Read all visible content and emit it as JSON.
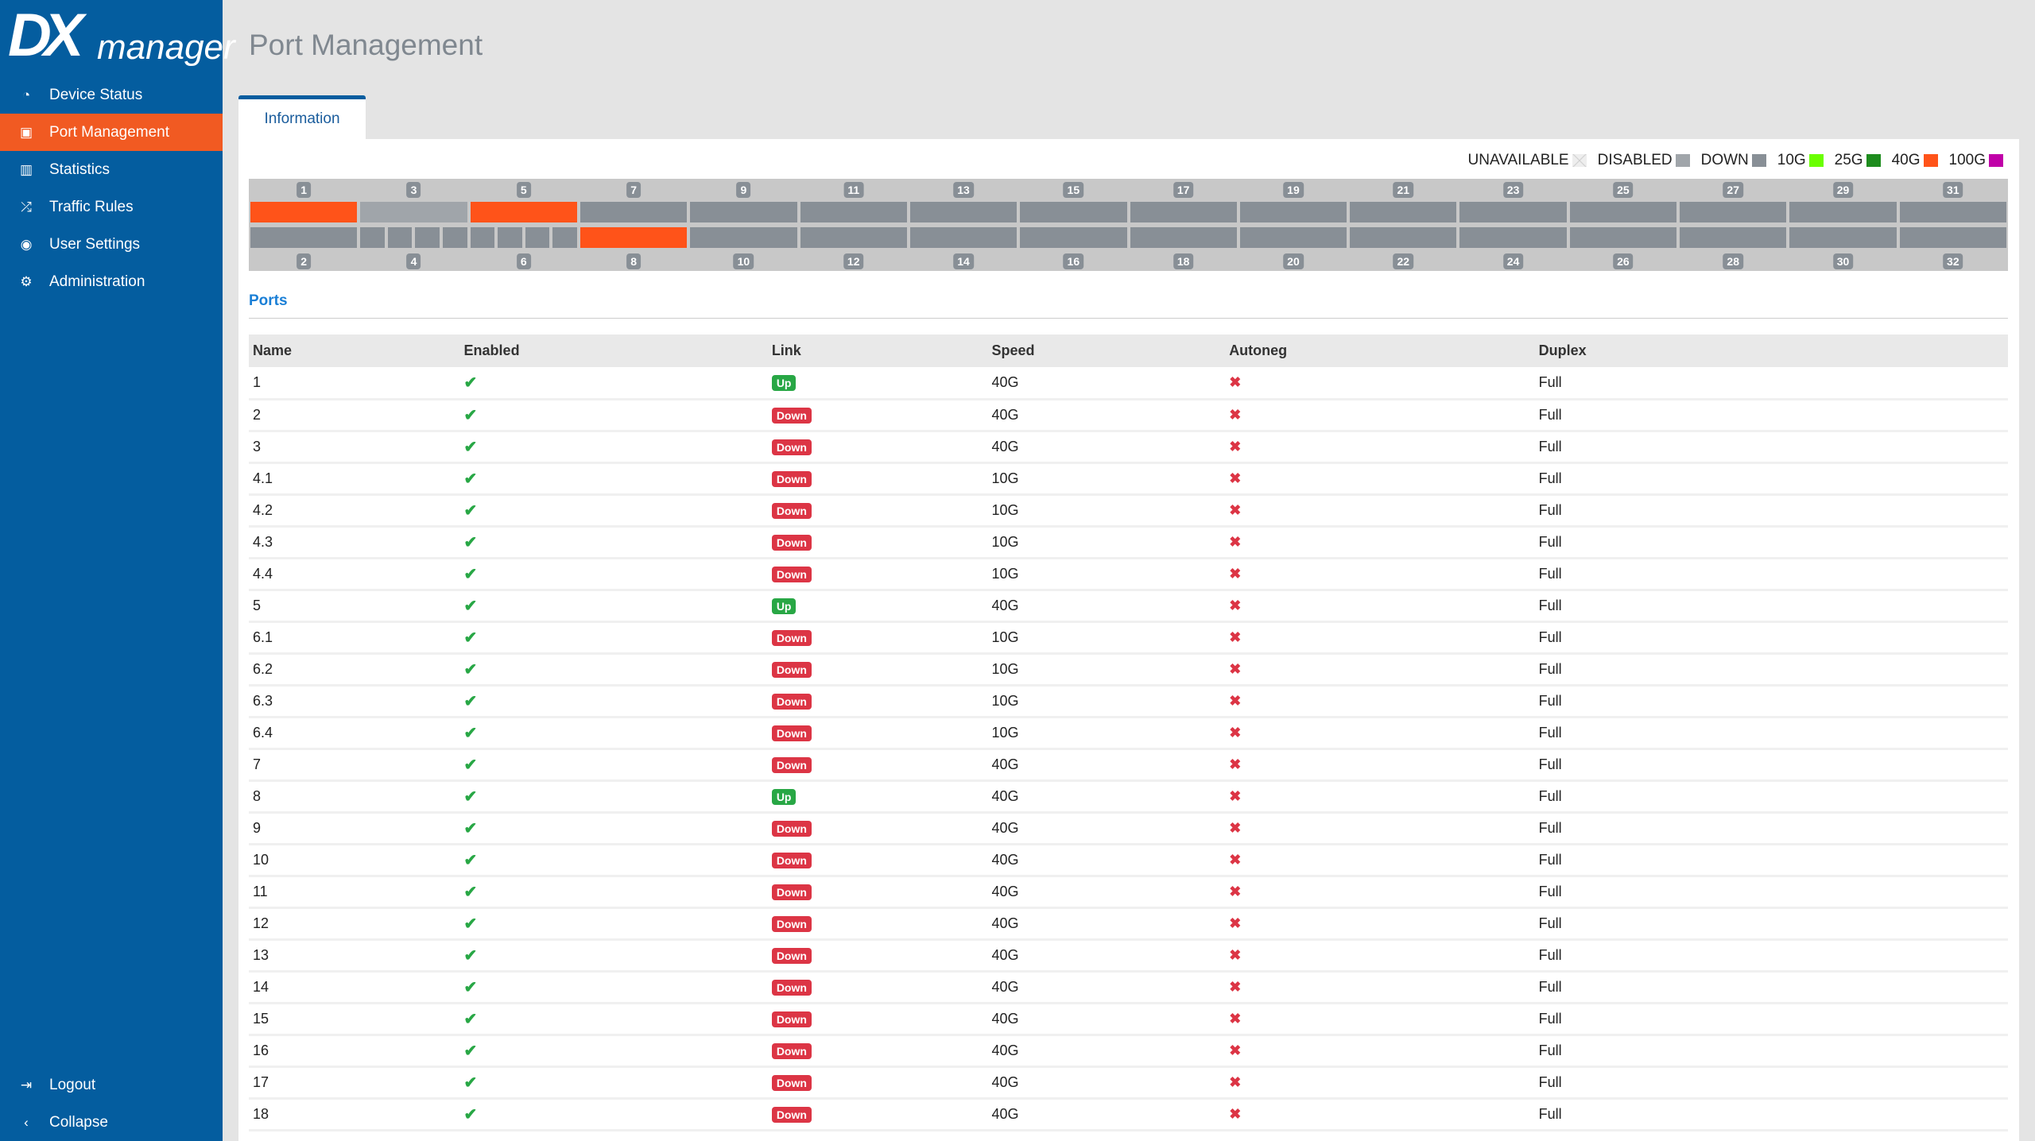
{
  "logo": {
    "mark": "DX",
    "word": "manager"
  },
  "nav": [
    {
      "label": "Device Status",
      "icon": "gauge-icon"
    },
    {
      "label": "Port Management",
      "icon": "port-icon",
      "active": true
    },
    {
      "label": "Statistics",
      "icon": "bar-chart-icon"
    },
    {
      "label": "Traffic Rules",
      "icon": "shuffle-icon"
    },
    {
      "label": "User Settings",
      "icon": "user-icon"
    },
    {
      "label": "Administration",
      "icon": "gear-icon"
    }
  ],
  "bottom_nav": [
    {
      "label": "Logout",
      "icon": "logout-icon"
    },
    {
      "label": "Collapse",
      "icon": "chevron-left-icon"
    }
  ],
  "page_title": "Port Management",
  "tab": "Information",
  "legend": [
    {
      "label": "UNAVAILABLE",
      "color": "#e8e8e8"
    },
    {
      "label": "DISABLED",
      "color": "#a0a5aa"
    },
    {
      "label": "DOWN",
      "color": "#888f96"
    },
    {
      "label": "10G",
      "color": "#6aff00"
    },
    {
      "label": "25G",
      "color": "#1e8c1e"
    },
    {
      "label": "40G",
      "color": "#ff5319"
    },
    {
      "label": "100G",
      "color": "#c000a8"
    }
  ],
  "portmap": [
    {
      "top": "1",
      "top_state": [
        "up40"
      ],
      "bottom": "2",
      "bottom_state": [
        "down"
      ]
    },
    {
      "top": "3",
      "top_state": [
        "disabled"
      ],
      "bottom": "4",
      "bottom_state": [
        "down",
        "down",
        "down",
        "down"
      ]
    },
    {
      "top": "5",
      "top_state": [
        "up40"
      ],
      "bottom": "6",
      "bottom_state": [
        "down",
        "down",
        "down",
        "down"
      ]
    },
    {
      "top": "7",
      "top_state": [
        "down"
      ],
      "bottom": "8",
      "bottom_state": [
        "up40"
      ]
    },
    {
      "top": "9",
      "top_state": [
        "down"
      ],
      "bottom": "10",
      "bottom_state": [
        "down"
      ]
    },
    {
      "top": "11",
      "top_state": [
        "down"
      ],
      "bottom": "12",
      "bottom_state": [
        "down"
      ]
    },
    {
      "top": "13",
      "top_state": [
        "down"
      ],
      "bottom": "14",
      "bottom_state": [
        "down"
      ]
    },
    {
      "top": "15",
      "top_state": [
        "down"
      ],
      "bottom": "16",
      "bottom_state": [
        "down"
      ]
    },
    {
      "top": "17",
      "top_state": [
        "down"
      ],
      "bottom": "18",
      "bottom_state": [
        "down"
      ]
    },
    {
      "top": "19",
      "top_state": [
        "down"
      ],
      "bottom": "20",
      "bottom_state": [
        "down"
      ]
    },
    {
      "top": "21",
      "top_state": [
        "down"
      ],
      "bottom": "22",
      "bottom_state": [
        "down"
      ]
    },
    {
      "top": "23",
      "top_state": [
        "down"
      ],
      "bottom": "24",
      "bottom_state": [
        "down"
      ]
    },
    {
      "top": "25",
      "top_state": [
        "down"
      ],
      "bottom": "26",
      "bottom_state": [
        "down"
      ]
    },
    {
      "top": "27",
      "top_state": [
        "down"
      ],
      "bottom": "28",
      "bottom_state": [
        "down"
      ]
    },
    {
      "top": "29",
      "top_state": [
        "down"
      ],
      "bottom": "30",
      "bottom_state": [
        "down"
      ]
    },
    {
      "top": "31",
      "top_state": [
        "down"
      ],
      "bottom": "32",
      "bottom_state": [
        "down"
      ]
    }
  ],
  "ports_heading": "Ports",
  "columns": [
    "Name",
    "Enabled",
    "Link",
    "Speed",
    "Autoneg",
    "Duplex"
  ],
  "rows": [
    {
      "name": "1",
      "link": "Up",
      "speed": "40G",
      "duplex": "Full"
    },
    {
      "name": "2",
      "link": "Down",
      "speed": "40G",
      "duplex": "Full"
    },
    {
      "name": "3",
      "link": "Down",
      "speed": "40G",
      "duplex": "Full"
    },
    {
      "name": "4.1",
      "link": "Down",
      "speed": "10G",
      "duplex": "Full"
    },
    {
      "name": "4.2",
      "link": "Down",
      "speed": "10G",
      "duplex": "Full"
    },
    {
      "name": "4.3",
      "link": "Down",
      "speed": "10G",
      "duplex": "Full"
    },
    {
      "name": "4.4",
      "link": "Down",
      "speed": "10G",
      "duplex": "Full"
    },
    {
      "name": "5",
      "link": "Up",
      "speed": "40G",
      "duplex": "Full"
    },
    {
      "name": "6.1",
      "link": "Down",
      "speed": "10G",
      "duplex": "Full"
    },
    {
      "name": "6.2",
      "link": "Down",
      "speed": "10G",
      "duplex": "Full"
    },
    {
      "name": "6.3",
      "link": "Down",
      "speed": "10G",
      "duplex": "Full"
    },
    {
      "name": "6.4",
      "link": "Down",
      "speed": "10G",
      "duplex": "Full"
    },
    {
      "name": "7",
      "link": "Down",
      "speed": "40G",
      "duplex": "Full"
    },
    {
      "name": "8",
      "link": "Up",
      "speed": "40G",
      "duplex": "Full"
    },
    {
      "name": "9",
      "link": "Down",
      "speed": "40G",
      "duplex": "Full"
    },
    {
      "name": "10",
      "link": "Down",
      "speed": "40G",
      "duplex": "Full"
    },
    {
      "name": "11",
      "link": "Down",
      "speed": "40G",
      "duplex": "Full"
    },
    {
      "name": "12",
      "link": "Down",
      "speed": "40G",
      "duplex": "Full"
    },
    {
      "name": "13",
      "link": "Down",
      "speed": "40G",
      "duplex": "Full"
    },
    {
      "name": "14",
      "link": "Down",
      "speed": "40G",
      "duplex": "Full"
    },
    {
      "name": "15",
      "link": "Down",
      "speed": "40G",
      "duplex": "Full"
    },
    {
      "name": "16",
      "link": "Down",
      "speed": "40G",
      "duplex": "Full"
    },
    {
      "name": "17",
      "link": "Down",
      "speed": "40G",
      "duplex": "Full"
    },
    {
      "name": "18",
      "link": "Down",
      "speed": "40G",
      "duplex": "Full"
    }
  ]
}
